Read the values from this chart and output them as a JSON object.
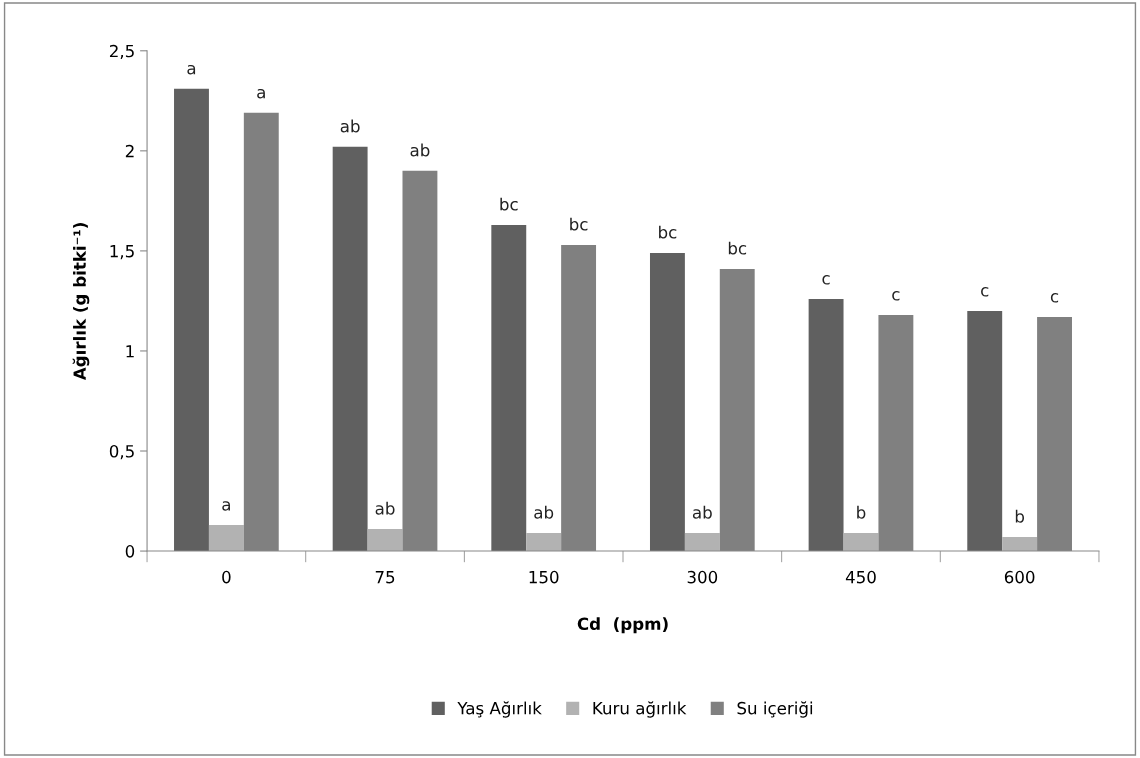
{
  "chart_data": {
    "type": "bar",
    "xlabel": "Cd  (ppm)",
    "ylabel": "Ağırlık (g bitki⁻¹)",
    "categories": [
      "0",
      "75",
      "150",
      "300",
      "450",
      "600"
    ],
    "series": [
      {
        "name": "Yaş Ağırlık",
        "color": "#606060",
        "values": [
          2.31,
          2.02,
          1.63,
          1.49,
          1.26,
          1.2
        ],
        "value_labels": [
          "a",
          "ab",
          "bc",
          "bc",
          "c",
          "c"
        ]
      },
      {
        "name": "Kuru ağırlık",
        "color": "#b2b2b2",
        "values": [
          0.13,
          0.11,
          0.09,
          0.09,
          0.09,
          0.07
        ],
        "value_labels": [
          "a",
          "ab",
          "ab",
          "ab",
          "b",
          "b"
        ]
      },
      {
        "name": "Su içeriği",
        "color": "#808080",
        "values": [
          2.19,
          1.9,
          1.53,
          1.41,
          1.18,
          1.17
        ],
        "value_labels": [
          "a",
          "ab",
          "bc",
          "bc",
          "c",
          "c"
        ]
      }
    ],
    "ylim": [
      0,
      2.5
    ],
    "yticks": [
      0,
      {
        "value": 0.5,
        "label": "0,5"
      },
      1,
      {
        "value": 1.5,
        "label": "1,5"
      },
      2,
      {
        "value": 2.5,
        "label": "2,5"
      }
    ],
    "grid": false,
    "legend": "bottom"
  }
}
